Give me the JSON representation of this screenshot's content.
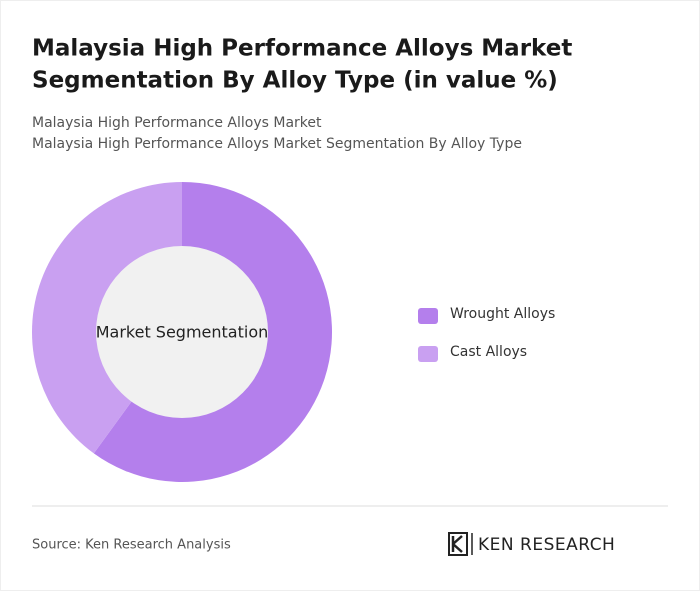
{
  "chart_data": {
    "type": "donut",
    "title": [
      "Malaysia High Performance Alloys Market",
      "Segmentation By Alloy Type (in value %)"
    ],
    "subtitle": [
      "Malaysia High Performance Alloys Market",
      "Malaysia High Performance Alloys Market Segmentation By Alloy Type"
    ],
    "center_label": "Market Segmentation",
    "categories": [
      "Wrought Alloys",
      "Cast Alloys"
    ],
    "values": [
      60,
      40
    ],
    "colors": [
      "#b47fec",
      "#c9a0f1"
    ],
    "legend": "right"
  },
  "footer": {
    "source": "Source: Ken Research Analysis",
    "logo": "KEN RESEARCH"
  }
}
